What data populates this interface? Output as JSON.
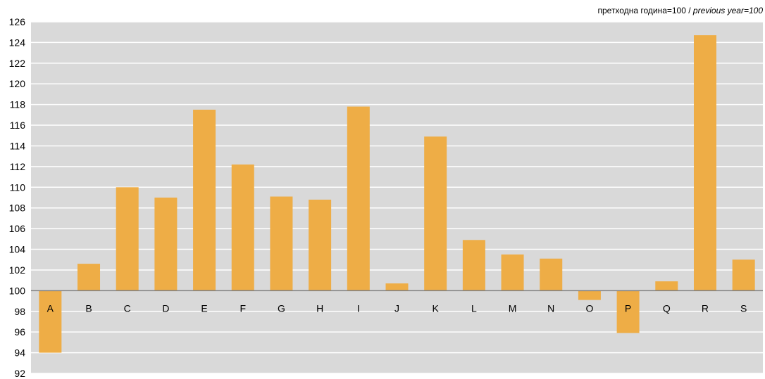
{
  "chart_data": {
    "type": "bar",
    "note": "претходна година=100",
    "note_en": "previous year=100",
    "note_separator": " / ",
    "baseline": 100,
    "categories": [
      "A",
      "B",
      "C",
      "D",
      "E",
      "F",
      "G",
      "H",
      "I",
      "J",
      "K",
      "L",
      "M",
      "N",
      "O",
      "P",
      "Q",
      "R",
      "S"
    ],
    "values": [
      94.0,
      102.6,
      110.0,
      109.0,
      117.5,
      112.2,
      109.1,
      108.8,
      117.8,
      100.7,
      114.9,
      104.9,
      103.5,
      103.1,
      99.1,
      95.9,
      100.9,
      124.7,
      103.0
    ],
    "ylim": [
      92,
      126
    ],
    "yticks": [
      92,
      94,
      96,
      98,
      100,
      102,
      104,
      106,
      108,
      110,
      112,
      114,
      116,
      118,
      120,
      122,
      124,
      126
    ],
    "grid": true,
    "colors": {
      "bar": "#EEAD46",
      "plot_bg": "#D9D9D9",
      "grid": "#FFFFFF",
      "baseline": "#808080"
    }
  }
}
